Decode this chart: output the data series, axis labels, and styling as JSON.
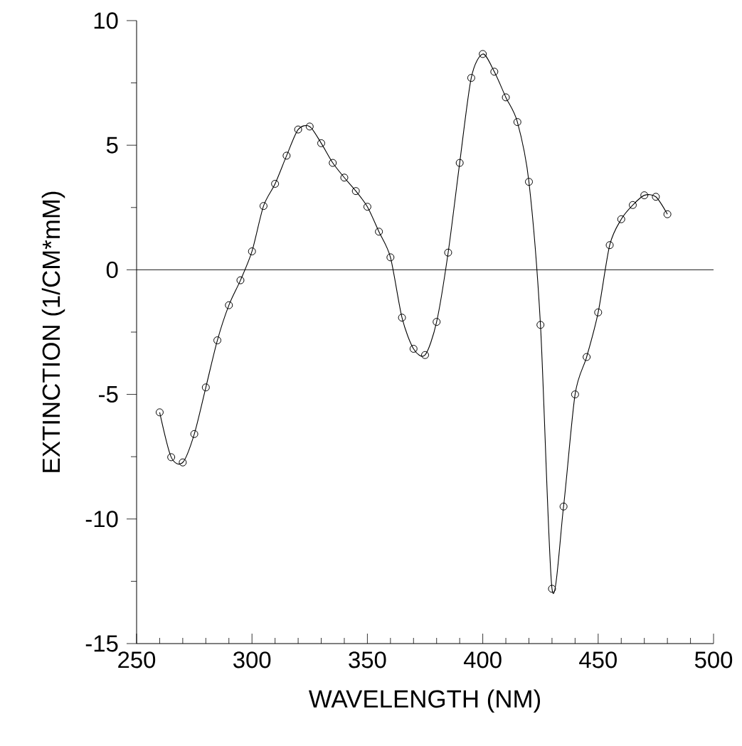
{
  "chart_data": {
    "type": "line",
    "xlabel": "WAVELENGTH (NM)",
    "ylabel": "EXTINCTION (1/CM*mM)",
    "x": [
      260,
      265,
      270,
      275,
      280,
      285,
      290,
      295,
      300,
      305,
      310,
      315,
      320,
      325,
      330,
      335,
      340,
      345,
      350,
      355,
      360,
      365,
      370,
      375,
      380,
      385,
      390,
      395,
      400,
      405,
      410,
      415,
      420,
      425,
      430,
      435,
      440,
      445,
      450,
      455,
      460,
      465,
      470,
      475,
      480
    ],
    "series": [
      {
        "color": "#000000",
        "values": [
          -5.72,
          -7.52,
          -7.73,
          -6.59,
          -4.72,
          -2.83,
          -1.42,
          -0.42,
          0.74,
          2.56,
          3.45,
          4.58,
          5.63,
          5.75,
          5.08,
          4.29,
          3.7,
          3.16,
          2.53,
          1.53,
          0.5,
          -1.92,
          -3.17,
          -3.42,
          -2.09,
          0.69,
          4.29,
          7.7,
          8.66,
          7.95,
          6.92,
          5.93,
          3.53,
          -2.21,
          -12.8,
          -9.5,
          -5.0,
          -3.5,
          -1.71,
          0.99,
          2.03,
          2.6,
          2.99,
          2.93,
          2.23
        ]
      }
    ],
    "xlim": [
      250,
      500
    ],
    "ylim": [
      -15,
      10
    ],
    "xticks": [
      250,
      {
        "value": 260,
        "label": null
      },
      {
        "value": 270,
        "label": null
      },
      {
        "value": 280,
        "label": null
      },
      {
        "value": 290,
        "label": null
      },
      300,
      {
        "value": 310,
        "label": null
      },
      {
        "value": 320,
        "label": null
      },
      {
        "value": 330,
        "label": null
      },
      {
        "value": 340,
        "label": null
      },
      350,
      {
        "value": 360,
        "label": null
      },
      {
        "value": 370,
        "label": null
      },
      {
        "value": 380,
        "label": null
      },
      {
        "value": 390,
        "label": null
      },
      400,
      {
        "value": 410,
        "label": null
      },
      {
        "value": 420,
        "label": null
      },
      {
        "value": 430,
        "label": null
      },
      {
        "value": 440,
        "label": null
      },
      450,
      {
        "value": 460,
        "label": null
      },
      {
        "value": 470,
        "label": null
      },
      {
        "value": 480,
        "label": null
      },
      {
        "value": 490,
        "label": null
      },
      500
    ],
    "yticks": [
      -15,
      {
        "value": -12.5,
        "label": null
      },
      -10,
      {
        "value": -7.5,
        "label": null
      },
      -5,
      {
        "value": -2.5,
        "label": null
      },
      0,
      {
        "value": 2.5,
        "label": null
      },
      5,
      {
        "value": 7.5,
        "label": null
      },
      10
    ],
    "ref_lines": [
      {
        "axis": "y",
        "value": 0,
        "color": "#000000"
      }
    ],
    "marker": "circle",
    "line_style": "solid"
  }
}
